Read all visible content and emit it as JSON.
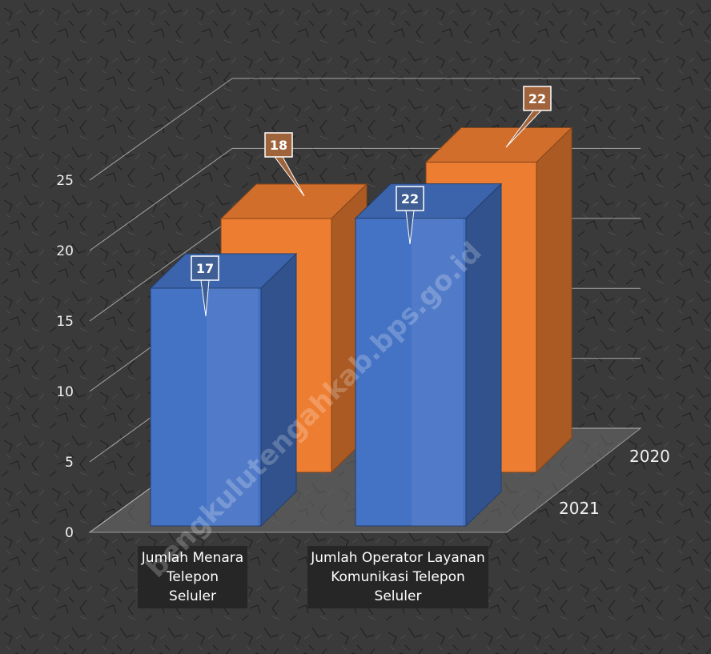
{
  "chart_data": {
    "type": "bar",
    "subtype": "3d-column",
    "categories": [
      [
        "Jumlah Menara",
        "Telepon",
        "Seluler"
      ],
      [
        "Jumlah Operator Layanan",
        "Komunikasi Telepon",
        "Seluler"
      ]
    ],
    "series": [
      {
        "name": "2021",
        "values": [
          17,
          22
        ],
        "color": "#4472c4"
      },
      {
        "name": "2020",
        "values": [
          18,
          22
        ],
        "color": "#ed7d31"
      }
    ],
    "yticks": [
      0,
      5,
      10,
      15,
      20,
      25
    ],
    "ylim": [
      0,
      25
    ],
    "grid": true,
    "watermark": "bengkulutengahkab.bps.go.id",
    "colors": {
      "background": "#3b3b3b",
      "gridline": "#bfbfbf",
      "label_box": "#262626"
    }
  }
}
